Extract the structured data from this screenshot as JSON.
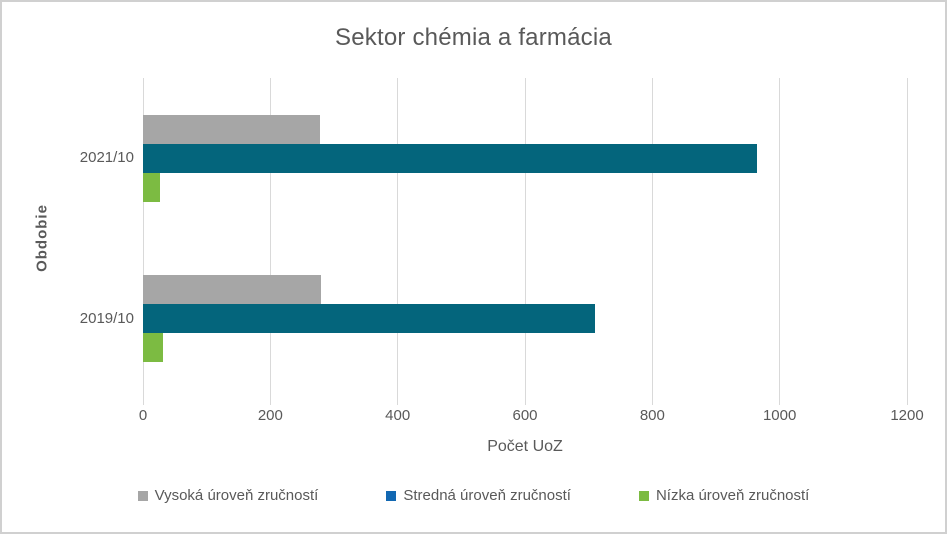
{
  "chart_data": {
    "type": "bar",
    "orientation": "horizontal",
    "title": "Sektor chémia a farmácia",
    "xlabel": "Počet UoZ",
    "ylabel": "Obdobie",
    "categories": [
      "2021/10",
      "2019/10"
    ],
    "series": [
      {
        "name": "Vysoká úroveň zručností",
        "color": "#A6A6A6",
        "legend_marker_color": "#A6A6A6",
        "values": [
          278,
          280
        ]
      },
      {
        "name": "Stredná úroveň zručností",
        "color": "#04657C",
        "legend_marker_color": "#1268B2",
        "values": [
          964,
          710
        ]
      },
      {
        "name": "Nízka úroveň zručností",
        "color": "#7CBB42",
        "legend_marker_color": "#7CBB42",
        "values": [
          27,
          32
        ]
      }
    ],
    "xlim": [
      0,
      1200
    ],
    "xticks": [
      0,
      200,
      400,
      600,
      800,
      1000,
      1200
    ],
    "grid": "vertical-only",
    "legend_position": "bottom",
    "colors": {
      "text": "#595959",
      "gridline": "#D9D9D9",
      "background": "#FFFFFF",
      "frame_border": "#D0D0D0"
    }
  }
}
